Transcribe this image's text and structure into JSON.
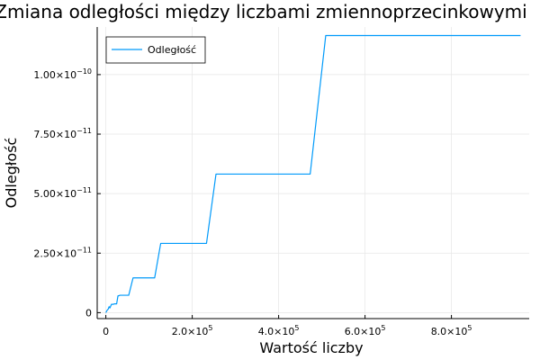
{
  "chart_data": {
    "type": "line",
    "title": "Zmiana odległości między liczbami zmiennoprzecinkowymi",
    "xlabel": "Wartość liczby",
    "ylabel": "Odległość",
    "xlim": [
      -20000,
      980000
    ],
    "ylim": [
      -2.5e-12,
      1.2e-10
    ],
    "grid": true,
    "legend_position": "top-left",
    "x_ticks": [
      {
        "value": 0,
        "mant": "0",
        "exp": ""
      },
      {
        "value": 200000,
        "mant": "2.0×10",
        "exp": "5"
      },
      {
        "value": 400000,
        "mant": "4.0×10",
        "exp": "5"
      },
      {
        "value": 600000,
        "mant": "6.0×10",
        "exp": "5"
      },
      {
        "value": 800000,
        "mant": "8.0×10",
        "exp": "5"
      }
    ],
    "y_ticks": [
      {
        "value": 0,
        "mant": "0",
        "exp": ""
      },
      {
        "value": 2.5e-11,
        "mant": "2.50×10",
        "exp": "−11"
      },
      {
        "value": 5e-11,
        "mant": "5.00×10",
        "exp": "−11"
      },
      {
        "value": 7.5e-11,
        "mant": "7.50×10",
        "exp": "−11"
      },
      {
        "value": 1e-10,
        "mant": "1.00×10",
        "exp": "−10"
      }
    ],
    "series": [
      {
        "name": "Odległość",
        "color": "#009AFA",
        "x": [
          0,
          3000,
          5500,
          7500,
          9500,
          13000,
          17000,
          20000,
          25000,
          28000,
          33000,
          36000,
          53000,
          63000,
          113000,
          127000,
          233000,
          255000,
          473000,
          509000,
          960000
        ],
        "y": [
          0,
          1e-12,
          1.5e-12,
          2.5e-12,
          2e-12,
          3.5e-12,
          3.5e-12,
          3.7e-12,
          3.7e-12,
          7e-12,
          7.3e-12,
          7.3e-12,
          7.3e-12,
          1.46e-11,
          1.46e-11,
          2.91e-11,
          2.91e-11,
          5.82e-11,
          5.82e-11,
          1.164e-10,
          1.164e-10
        ]
      }
    ]
  }
}
